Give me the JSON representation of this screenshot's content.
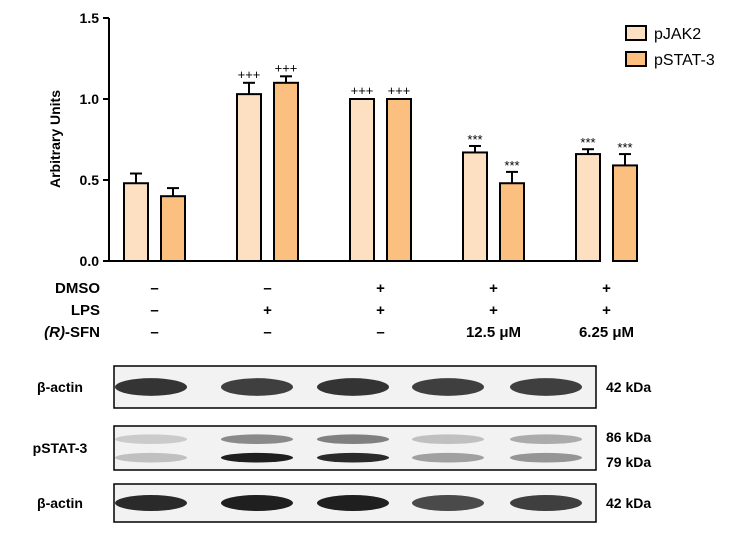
{
  "chart_data": {
    "type": "bar",
    "ylabel": "Arbitrary Units",
    "ylim": [
      0,
      1.5
    ],
    "yticks": [
      "0.0",
      "0.5",
      "1.0",
      "1.5"
    ],
    "groups": 5,
    "series": [
      {
        "name": "pJAK2",
        "color": "#fde0c2",
        "values": [
          0.48,
          1.03,
          1.0,
          0.67,
          0.66
        ],
        "errors": [
          0.06,
          0.07,
          0.0,
          0.04,
          0.03
        ],
        "annotations": [
          "",
          "+++",
          "+++",
          "***",
          "***"
        ]
      },
      {
        "name": "pSTAT-3",
        "color": "#fbbf80",
        "values": [
          0.4,
          1.1,
          1.0,
          0.48,
          0.59
        ],
        "errors": [
          0.05,
          0.04,
          0.0,
          0.07,
          0.07
        ],
        "annotations": [
          "",
          "+++",
          "+++",
          "***",
          "***"
        ]
      }
    ],
    "treatments": {
      "rows": [
        {
          "label": "DMSO",
          "values": [
            "–",
            "–",
            "+",
            "+",
            "+"
          ]
        },
        {
          "label": "LPS",
          "values": [
            "–",
            "+",
            "+",
            "+",
            "+"
          ]
        },
        {
          "label_prefix": "(R)",
          "label_suffix": "-SFN",
          "values": [
            "–",
            "–",
            "–",
            "12.5 μM",
            "6.25 μM"
          ]
        }
      ]
    }
  },
  "blots": [
    {
      "label": "β-actin",
      "kda": [
        "42 kDa"
      ],
      "bands": [
        [
          0.85,
          0.8,
          0.85,
          0.8,
          0.8
        ]
      ]
    },
    {
      "label": "pSTAT-3",
      "kda": [
        "86 kDa",
        "79 kDa"
      ],
      "bands": [
        [
          0.15,
          0.45,
          0.5,
          0.2,
          0.3
        ],
        [
          0.2,
          0.95,
          0.9,
          0.35,
          0.4
        ]
      ]
    },
    {
      "label": "β-actin",
      "kda": [
        "42 kDa"
      ],
      "bands": [
        [
          0.9,
          0.95,
          0.95,
          0.75,
          0.8
        ]
      ]
    }
  ]
}
